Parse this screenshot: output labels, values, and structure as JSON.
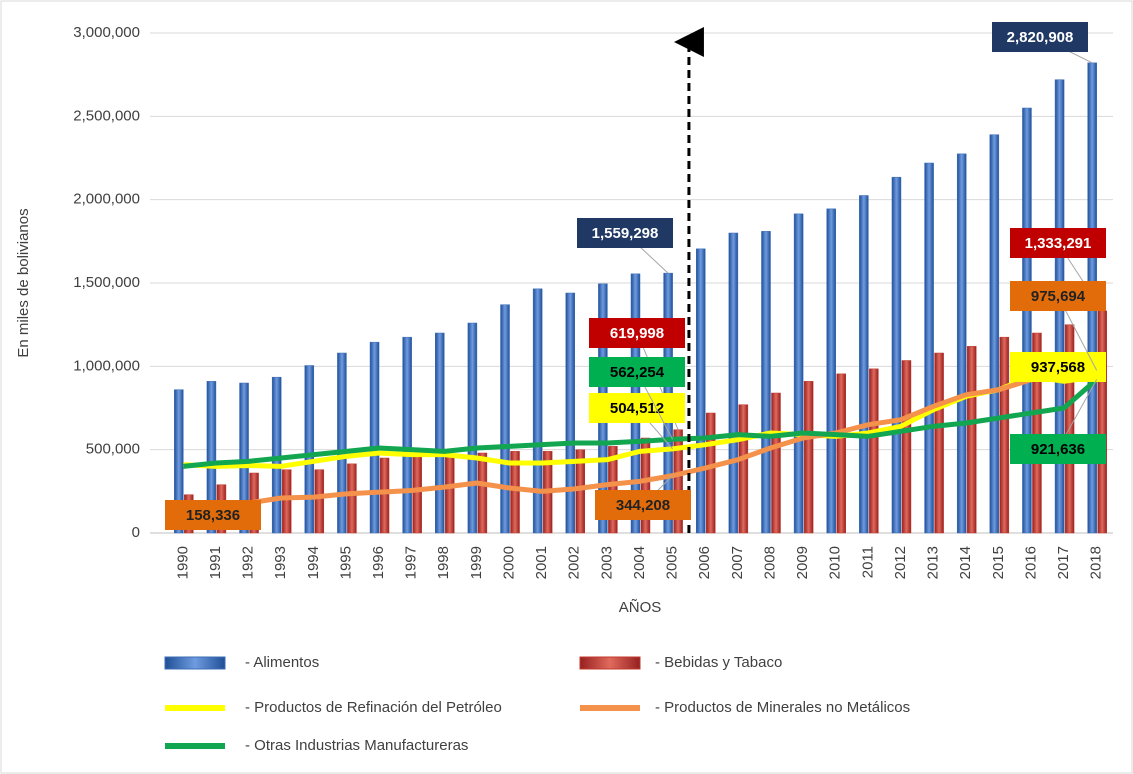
{
  "chart_data": {
    "type": "combo",
    "y_axis_title": "En miles de bolivianos",
    "x_axis_title": "AÑOS",
    "categories": [
      "1990",
      "1991",
      "1992",
      "1993",
      "1994",
      "1995",
      "1996",
      "1997",
      "1998",
      "1999",
      "2000",
      "2001",
      "2002",
      "2003",
      "2004",
      "2005",
      "2006",
      "2007",
      "2008",
      "2009",
      "2010",
      "2011",
      "2012",
      "2013",
      "2014",
      "2015",
      "2016",
      "2017",
      "2018"
    ],
    "ylim": [
      0,
      3000000
    ],
    "yticks": [
      0,
      {
        "value": 500000,
        "label": "500,000"
      },
      {
        "value": 1000000,
        "label": "1,000,000"
      },
      {
        "value": 1500000,
        "label": "1,500,000"
      },
      {
        "value": 2000000,
        "label": "2,000,000"
      },
      {
        "value": 2500000,
        "label": "2,500,000"
      },
      {
        "value": 3000000,
        "label": "3,000,000"
      }
    ],
    "grid": true,
    "series": [
      {
        "name": "- Alimentos",
        "type": "bar",
        "color": "#3b6cb5",
        "values": [
          860000,
          910000,
          900000,
          935000,
          1005000,
          1080000,
          1145000,
          1175000,
          1200000,
          1260000,
          1370000,
          1465000,
          1440000,
          1495000,
          1555000,
          1559298,
          1705000,
          1800000,
          1810000,
          1915000,
          1945000,
          2025000,
          2135000,
          2220000,
          2275000,
          2390000,
          2550000,
          2720000,
          2820908
        ],
        "value_labels": [
          null,
          null,
          null,
          null,
          null,
          null,
          null,
          null,
          null,
          null,
          null,
          null,
          null,
          null,
          null,
          "1,559,298",
          null,
          null,
          null,
          null,
          null,
          null,
          null,
          null,
          null,
          null,
          null,
          null,
          "2,820,908"
        ]
      },
      {
        "name": "- Bebidas y Tabaco",
        "type": "bar",
        "color": "#c0392b",
        "values": [
          230000,
          290000,
          360000,
          380000,
          380000,
          415000,
          450000,
          460000,
          470000,
          480000,
          490000,
          490000,
          500000,
          520000,
          570000,
          619998,
          720000,
          770000,
          840000,
          910000,
          955000,
          985000,
          1035000,
          1080000,
          1120000,
          1175000,
          1200000,
          1250000,
          1333291
        ],
        "value_labels": [
          null,
          null,
          null,
          null,
          null,
          null,
          null,
          null,
          null,
          null,
          null,
          null,
          null,
          null,
          null,
          "619,998",
          null,
          null,
          null,
          null,
          null,
          null,
          null,
          null,
          null,
          null,
          null,
          null,
          "1,333,291"
        ]
      },
      {
        "name": "- Productos de Refinación del Petróleo",
        "type": "line",
        "color": "#ffff00",
        "values": [
          410000,
          400000,
          405000,
          400000,
          430000,
          460000,
          480000,
          470000,
          470000,
          450000,
          420000,
          420000,
          430000,
          440000,
          490000,
          504512,
          530000,
          560000,
          600000,
          590000,
          580000,
          600000,
          640000,
          740000,
          820000,
          860000,
          940000,
          910000,
          937568
        ],
        "value_labels": [
          null,
          null,
          null,
          null,
          null,
          null,
          null,
          null,
          null,
          null,
          null,
          null,
          null,
          null,
          null,
          "504,512",
          null,
          null,
          null,
          null,
          null,
          null,
          null,
          null,
          null,
          null,
          null,
          null,
          "937,568"
        ]
      },
      {
        "name": "- Productos de Minerales no Metálicos",
        "type": "line",
        "color": "#f4914a",
        "values": [
          158336,
          165000,
          180000,
          210000,
          215000,
          235000,
          245000,
          255000,
          275000,
          300000,
          270000,
          250000,
          265000,
          290000,
          310000,
          344208,
          390000,
          440000,
          510000,
          570000,
          600000,
          650000,
          680000,
          760000,
          830000,
          860000,
          920000,
          930000,
          975694
        ],
        "value_labels": [
          "158,336",
          null,
          null,
          null,
          null,
          null,
          null,
          null,
          null,
          null,
          null,
          null,
          null,
          null,
          null,
          "344,208",
          null,
          null,
          null,
          null,
          null,
          null,
          null,
          null,
          null,
          null,
          null,
          null,
          "975,694"
        ]
      },
      {
        "name": "- Otras Industrias Manufactureras",
        "type": "line",
        "color": "#12a650",
        "values": [
          400000,
          420000,
          430000,
          450000,
          470000,
          490000,
          510000,
          500000,
          490000,
          510000,
          520000,
          530000,
          540000,
          540000,
          550000,
          562254,
          570000,
          590000,
          580000,
          600000,
          590000,
          580000,
          610000,
          640000,
          660000,
          690000,
          720000,
          750000,
          921636
        ],
        "value_labels": [
          null,
          null,
          null,
          null,
          null,
          null,
          null,
          null,
          null,
          null,
          null,
          null,
          null,
          null,
          null,
          "562,254",
          null,
          null,
          null,
          null,
          null,
          null,
          null,
          null,
          null,
          null,
          null,
          null,
          "921,636"
        ]
      }
    ]
  }
}
